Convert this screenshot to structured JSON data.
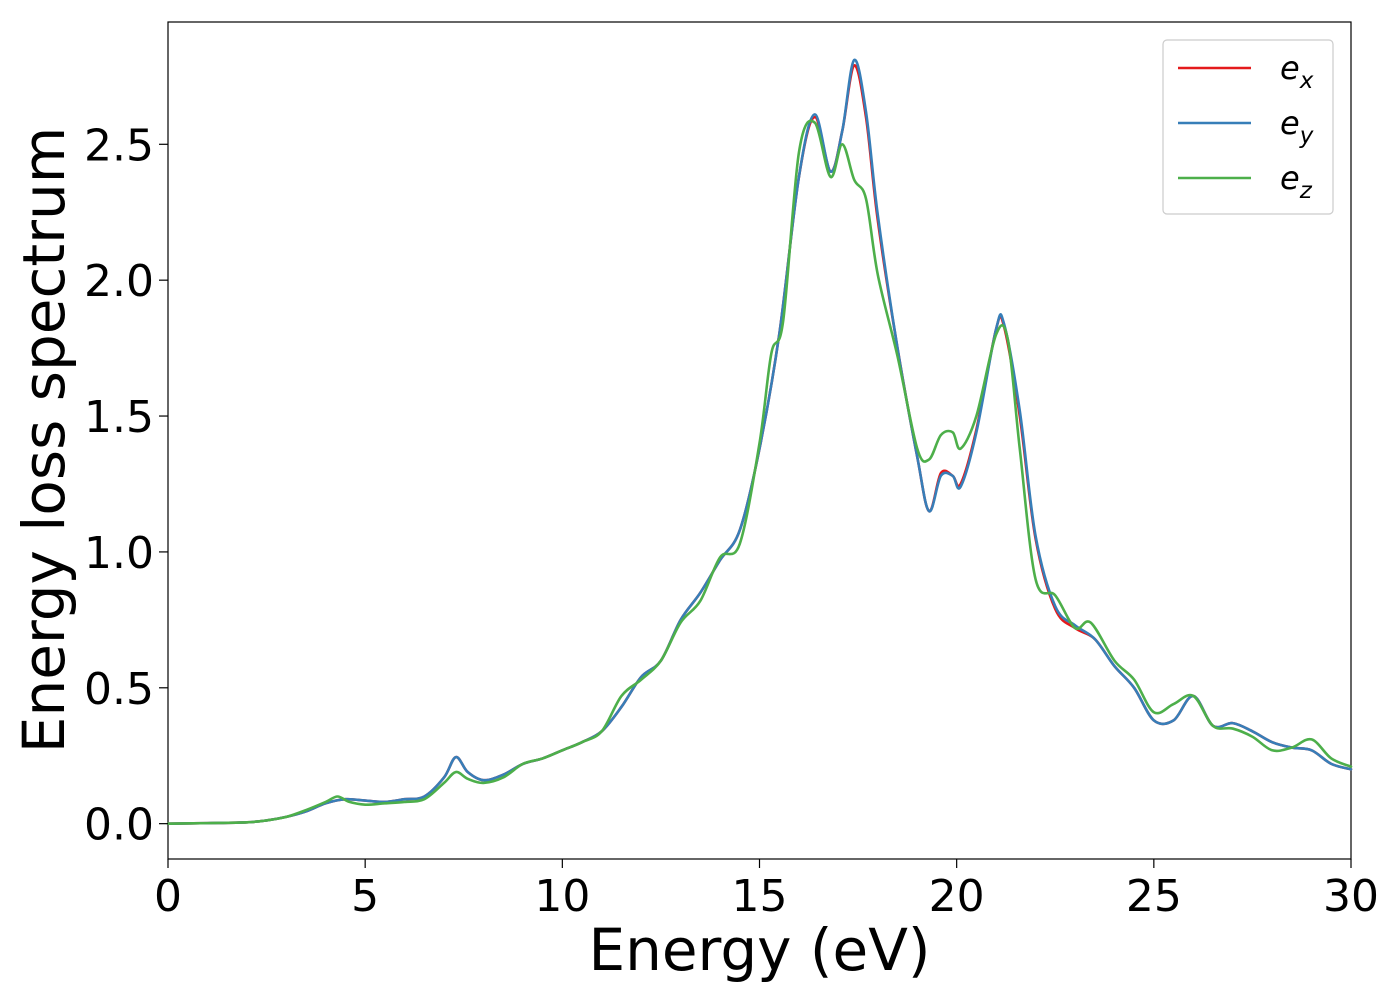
{
  "chart_data": {
    "type": "line",
    "title": "",
    "xlabel": "Energy (eV)",
    "ylabel": "Energy loss spectrum",
    "xlim": [
      0,
      30
    ],
    "ylim": [
      -0.13,
      2.95
    ],
    "xticks": [
      0,
      5,
      10,
      15,
      20,
      25,
      30
    ],
    "yticks": [
      0.0,
      0.5,
      1.0,
      1.5,
      2.0,
      2.5
    ],
    "xtick_labels": [
      "0",
      "5",
      "10",
      "15",
      "20",
      "25",
      "30"
    ],
    "ytick_labels": [
      "0.0",
      "0.5",
      "1.0",
      "1.5",
      "2.0",
      "2.5"
    ],
    "grid": false,
    "legend_position": "top-right",
    "series": [
      {
        "name": "e_x",
        "label_base": "e",
        "label_sub": "x",
        "color": "#e41a1c",
        "x": [
          0,
          1,
          2,
          2.5,
          3,
          3.5,
          4,
          4.5,
          5,
          5.5,
          6,
          6.5,
          7,
          7.3,
          7.6,
          8,
          8.5,
          9,
          9.5,
          10,
          10.5,
          11,
          11.5,
          12,
          12.5,
          13,
          13.5,
          14,
          14.5,
          15,
          15.5,
          16,
          16.4,
          16.8,
          17.1,
          17.4,
          17.7,
          18,
          18.5,
          19,
          19.3,
          19.6,
          19.9,
          20.1,
          20.5,
          21,
          21.2,
          21.6,
          22,
          22.5,
          23,
          23.5,
          24,
          24.5,
          25,
          25.5,
          26,
          26.5,
          27,
          27.5,
          28,
          28.5,
          29,
          29.5,
          30
        ],
        "y": [
          0,
          0.002,
          0.005,
          0.012,
          0.025,
          0.045,
          0.075,
          0.09,
          0.085,
          0.08,
          0.09,
          0.1,
          0.17,
          0.245,
          0.19,
          0.16,
          0.18,
          0.22,
          0.24,
          0.27,
          0.3,
          0.34,
          0.43,
          0.54,
          0.6,
          0.75,
          0.85,
          0.97,
          1.08,
          1.38,
          1.8,
          2.38,
          2.6,
          2.4,
          2.55,
          2.79,
          2.6,
          2.22,
          1.75,
          1.35,
          1.15,
          1.29,
          1.28,
          1.25,
          1.45,
          1.82,
          1.83,
          1.5,
          1.05,
          0.79,
          0.72,
          0.68,
          0.58,
          0.5,
          0.38,
          0.38,
          0.47,
          0.36,
          0.37,
          0.34,
          0.3,
          0.28,
          0.27,
          0.22,
          0.2
        ]
      },
      {
        "name": "e_y",
        "label_base": "e",
        "label_sub": "y",
        "color": "#377eb8",
        "x": [
          0,
          1,
          2,
          2.5,
          3,
          3.5,
          4,
          4.5,
          5,
          5.5,
          6,
          6.5,
          7,
          7.3,
          7.6,
          8,
          8.5,
          9,
          9.5,
          10,
          10.5,
          11,
          11.5,
          12,
          12.5,
          13,
          13.5,
          14,
          14.5,
          15,
          15.5,
          16,
          16.4,
          16.8,
          17.1,
          17.4,
          17.7,
          18,
          18.5,
          19,
          19.3,
          19.6,
          19.9,
          20.1,
          20.5,
          21,
          21.2,
          21.6,
          22,
          22.5,
          23,
          23.5,
          24,
          24.5,
          25,
          25.5,
          26,
          26.5,
          27,
          27.5,
          28,
          28.5,
          29,
          29.5,
          30
        ],
        "y": [
          0,
          0.002,
          0.005,
          0.012,
          0.025,
          0.045,
          0.075,
          0.09,
          0.085,
          0.08,
          0.09,
          0.1,
          0.17,
          0.245,
          0.19,
          0.16,
          0.18,
          0.22,
          0.24,
          0.27,
          0.3,
          0.34,
          0.43,
          0.54,
          0.6,
          0.75,
          0.85,
          0.97,
          1.08,
          1.38,
          1.8,
          2.38,
          2.61,
          2.4,
          2.55,
          2.81,
          2.62,
          2.24,
          1.75,
          1.35,
          1.15,
          1.28,
          1.28,
          1.24,
          1.44,
          1.82,
          1.84,
          1.52,
          1.06,
          0.8,
          0.73,
          0.68,
          0.58,
          0.5,
          0.38,
          0.38,
          0.47,
          0.36,
          0.37,
          0.34,
          0.3,
          0.28,
          0.27,
          0.22,
          0.2
        ]
      },
      {
        "name": "e_z",
        "label_base": "e",
        "label_sub": "z",
        "color": "#4daf4a",
        "x": [
          0,
          1,
          2,
          2.5,
          3,
          3.5,
          4,
          4.3,
          4.6,
          5,
          5.5,
          6,
          6.5,
          7,
          7.3,
          7.6,
          8,
          8.5,
          9,
          9.5,
          10,
          10.5,
          11,
          11.5,
          12,
          12.5,
          13,
          13.5,
          14,
          14.5,
          15,
          15.3,
          15.6,
          16,
          16.4,
          16.8,
          17.1,
          17.4,
          17.7,
          18,
          18.5,
          19,
          19.3,
          19.6,
          19.9,
          20.1,
          20.5,
          21,
          21.3,
          21.6,
          22,
          22.5,
          23,
          23.4,
          24,
          24.5,
          25,
          25.5,
          26,
          26.5,
          27,
          27.5,
          28,
          28.5,
          29,
          29.5,
          30
        ],
        "y": [
          0,
          0.002,
          0.005,
          0.012,
          0.025,
          0.05,
          0.08,
          0.1,
          0.08,
          0.07,
          0.075,
          0.08,
          0.09,
          0.15,
          0.19,
          0.165,
          0.15,
          0.17,
          0.22,
          0.24,
          0.27,
          0.3,
          0.34,
          0.47,
          0.53,
          0.6,
          0.74,
          0.82,
          0.98,
          1.03,
          1.4,
          1.73,
          1.85,
          2.47,
          2.58,
          2.38,
          2.5,
          2.37,
          2.3,
          2.02,
          1.72,
          1.38,
          1.34,
          1.43,
          1.44,
          1.38,
          1.5,
          1.8,
          1.78,
          1.38,
          0.9,
          0.84,
          0.72,
          0.74,
          0.6,
          0.53,
          0.41,
          0.44,
          0.47,
          0.36,
          0.35,
          0.32,
          0.27,
          0.28,
          0.31,
          0.24,
          0.21
        ]
      }
    ]
  }
}
